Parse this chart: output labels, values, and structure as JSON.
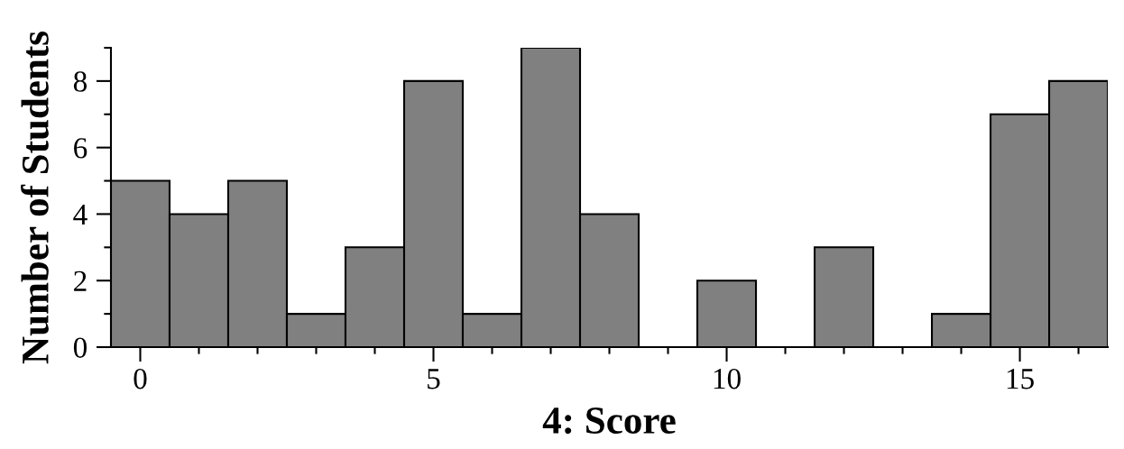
{
  "chart_data": {
    "type": "histogram",
    "xlabel": "4: Score",
    "ylabel": "Number of Students",
    "bins": [
      -0.5,
      0.5,
      1.5,
      2.5,
      3.5,
      4.5,
      5.5,
      6.5,
      7.5,
      8.5,
      9.5,
      10.5,
      11.5,
      12.5,
      13.5,
      14.5,
      15.5,
      16.5
    ],
    "values": [
      5,
      4,
      5,
      1,
      3,
      8,
      1,
      9,
      4,
      0,
      2,
      0,
      3,
      0,
      1,
      7,
      8
    ],
    "color": "#808080",
    "xlim": [
      -0.5,
      16.5
    ],
    "ylim": [
      0,
      9
    ],
    "xticks": [
      0,
      {
        "value": 1,
        "label": null
      },
      {
        "value": 2,
        "label": null
      },
      {
        "value": 3,
        "label": null
      },
      {
        "value": 4,
        "label": null
      },
      5,
      {
        "value": 6,
        "label": null
      },
      {
        "value": 7,
        "label": null
      },
      {
        "value": 8,
        "label": null
      },
      {
        "value": 9,
        "label": null
      },
      10,
      {
        "value": 11,
        "label": null
      },
      {
        "value": 12,
        "label": null
      },
      {
        "value": 13,
        "label": null
      },
      {
        "value": 14,
        "label": null
      },
      15,
      {
        "value": 16,
        "label": null
      }
    ],
    "yticks": [
      0,
      {
        "value": 1,
        "label": null
      },
      2,
      {
        "value": 3,
        "label": null
      },
      4,
      {
        "value": 5,
        "label": null
      },
      6,
      {
        "value": 7,
        "label": null
      },
      8,
      {
        "value": 9,
        "label": null
      }
    ],
    "grid": false
  }
}
